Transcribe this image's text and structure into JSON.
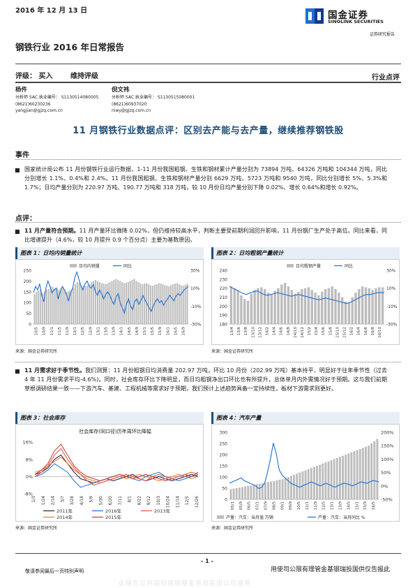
{
  "header": {
    "date": "2016 年 12 月 13 日",
    "report_title": "钢铁行业 2016 年日常报告",
    "logo_cn": "国金证券",
    "logo_en": "SINOLINK SECURITIES",
    "logo_sub": "证券研究报告"
  },
  "rating": {
    "label": "评级：  买入",
    "action": "维持评级",
    "category": "行业点评"
  },
  "analysts": [
    {
      "name": "杨件",
      "cert": "分析师 SAC 执业编号： S1130514080005",
      "phone": "(8621)60230236",
      "email": "yangjian@gjzq.com.cn"
    },
    {
      "name": "倪文祎",
      "cert": "分析师 SAC 执业编号： S1130515080001",
      "phone": "(8621)60937020",
      "email": "niwy@gjzq.com.cn"
    }
  ],
  "headline": "11 月钢铁行业数据点评：区别去产能与去产量，继续推荐钢铁股",
  "sections": {
    "event_title": "事件",
    "event_text": "国家统计局公布 11 月份钢铁行业运行数据，1-11 月份我国粗钢、生铁和钢材累计产量分别为 73894 万吨、64326 万吨和 104344 万吨，同比分别增长 1.1%、0.4%和 2.4%。11 月份我国粗钢、生铁和钢材产量分别 6629 万吨、5723 万吨和 9540 万吨，同比分别增长 5%、5.3%和 1.7%；日均产量分别为 220.97 万吨、190.77 万吨和 318 万吨，较 10 月份日均产量分别下降 0.02%、增长 0.64%和增长 0.92%。",
    "comment_title": "点评：",
    "p1_lead": "11 月产量符合预期。",
    "p1_text": "11 月产量环比微降 0.02%，但仍维持较高水平，判断主要受前期利润回升影响，11 月份钢厂生产处于高位。同比来看，同比增速提升（4.6%，较 10 月提升 0.9 个百分点）主要为基数原因。",
    "p2_lead": "11 月需求好于季节性。",
    "p2_text": "我们测算：11 月份粗钢日均消费量 202.97 万吨，环比 10 月份（202.99 万吨）基本持平，明显好于往年季节性（过去 4 年 11 月份需求平均-4.6%)。同时，社会库存环比下降明显，而日均粗钢净出口环比也有所提升，总体单月内外需情况好于预期。这与我们前期草根调研结果一致——下游汽车、基建、工程机械等需求好于预期，我们预计上述趋势具备一定持续性，板材下游需求则更好。"
  },
  "figures": {
    "fig1_title": "图表 1：日均内销量统计",
    "fig2_title": "图表 2：日均粗钢产量统计",
    "fig3_title": "图表 3：社会库存",
    "fig4_title": "图表 4：汽车产量",
    "source": "来源：国金证券研究所"
  },
  "footer": {
    "page": "- 1 -",
    "disclaimer": "敬请参阅最后一页特别声明",
    "right_text": "用使司公限有理管金基银瑞投国供仅告报此",
    "faint_text": "此报告仅供国投瑞银基金管理有限公司使用"
  },
  "chart_data": [
    {
      "type": "bar",
      "title": "图表 1：日均内销量统计",
      "series": [
        {
          "name": "日均内销量",
          "axis": "left",
          "type": "bar"
        },
        {
          "name": "同比",
          "axis": "right",
          "type": "line"
        }
      ],
      "x_tick_labels": [
        "10/5",
        "10/9",
        "11/1",
        "11/5",
        "11/9",
        "12/1",
        "12/5",
        "12/9",
        "13/1",
        "13/5",
        "13/9",
        "14/1",
        "14/5",
        "14/9",
        "15/1",
        "15/5",
        "15/9",
        "16/1",
        "16/5",
        "16/9"
      ],
      "y_left": {
        "ticks": [
          0,
          50,
          100,
          150,
          200,
          250
        ],
        "ylim": [
          0,
          250
        ]
      },
      "y_right": {
        "ticks": [
          "-30%",
          "-10%",
          "10%",
          "30%"
        ],
        "ylim": [
          -0.3,
          0.3
        ]
      },
      "bar_values": [
        138,
        150,
        155,
        160,
        145,
        150,
        160,
        163,
        175,
        172,
        165,
        170,
        160,
        165,
        170,
        160,
        150,
        155,
        160,
        168,
        185,
        195,
        190,
        180,
        178,
        175,
        180,
        185,
        195,
        200,
        205,
        200,
        195,
        190,
        188,
        185,
        190,
        195,
        200,
        205,
        210,
        205,
        200,
        195,
        190,
        192,
        195,
        200,
        205,
        210,
        200,
        195,
        190,
        185,
        188,
        190,
        185,
        180,
        178,
        182,
        185,
        190,
        188,
        185,
        180,
        178,
        175,
        180,
        185,
        188,
        190,
        185,
        180,
        178,
        182,
        188
      ],
      "line_values": [
        0.05,
        0.12,
        0.08,
        0.15,
        0.02,
        -0.05,
        0.1,
        0.18,
        0.12,
        0.05,
        0.08,
        0.1,
        -0.02,
        0.06,
        0.12,
        0.08,
        0.03,
        -0.04,
        0.05,
        0.1,
        0.22,
        0.28,
        0.2,
        0.12,
        0.08,
        0.15,
        0.18,
        0.12,
        0.1,
        0.14,
        0.06,
        0.02,
        0.08,
        0.04,
        -0.02,
        0.03,
        0.06,
        0.02,
        -0.04,
        -0.08,
        0.0,
        0.04,
        -0.06,
        -0.12,
        -0.18,
        -0.08,
        -0.02,
        -0.1,
        -0.14,
        -0.05,
        -0.02,
        -0.08,
        -0.04,
        0.02,
        -0.03,
        -0.07,
        -0.12,
        -0.16,
        -0.1,
        -0.05,
        -0.02,
        -0.06,
        -0.04,
        -0.09,
        -0.05,
        -0.02,
        0.02,
        -0.01,
        -0.04,
        0.01,
        0.04,
        0.02,
        0.05,
        0.08,
        0.1,
        0.12
      ]
    },
    {
      "type": "bar",
      "title": "图表 2：日均粗钢产量统计",
      "series": [
        {
          "name": "日均粗钢产量",
          "axis": "left",
          "type": "bar"
        },
        {
          "name": "同比",
          "axis": "right",
          "type": "line"
        }
      ],
      "x_tick_labels": [
        "13/4",
        "13/6",
        "13/8",
        "13/10",
        "13/12",
        "14/2",
        "14/4",
        "14/6",
        "14/8",
        "14/10",
        "14/12",
        "15/2",
        "15/4",
        "15/6",
        "15/8",
        "15/10",
        "15/12",
        "16/2",
        "16/4",
        "16/6",
        "16/8",
        "16/10"
      ],
      "y_left": {
        "ticks": [
          180,
          190,
          200,
          210,
          220,
          230,
          240
        ],
        "ylim": [
          180,
          240
        ]
      },
      "y_right": {
        "ticks": [
          "-30%",
          "-10%",
          "10%",
          "30%"
        ],
        "ylim": [
          -0.3,
          0.3
        ]
      },
      "bar_values": [
        222,
        220,
        218,
        212,
        208,
        206,
        214,
        218,
        220,
        221,
        219,
        215,
        213,
        217,
        220,
        224,
        226,
        222,
        218,
        214,
        216,
        219,
        220,
        221,
        218,
        215,
        212,
        216,
        219,
        220,
        222,
        219,
        215,
        210,
        205,
        204,
        210,
        215,
        219,
        222,
        221,
        220,
        218,
        220,
        221,
        221
      ],
      "line_values": [
        0.12,
        0.1,
        0.08,
        0.06,
        0.04,
        0.03,
        0.05,
        0.06,
        0.07,
        0.05,
        0.03,
        0.02,
        0.03,
        0.04,
        0.05,
        0.04,
        0.03,
        0.02,
        0.01,
        0.02,
        0.03,
        0.02,
        0.01,
        0.0,
        -0.01,
        -0.02,
        -0.03,
        -0.02,
        -0.01,
        -0.02,
        -0.03,
        -0.04,
        -0.05,
        -0.06,
        -0.07,
        -0.06,
        -0.04,
        -0.02,
        0.0,
        0.02,
        0.03,
        0.03,
        0.04,
        0.05,
        0.05,
        0.05
      ]
    },
    {
      "type": "line",
      "title": "社会库存(同口径)历年周环比降幅",
      "x_tick_labels": [
        "1/3",
        "1/24",
        "2/14",
        "3/7",
        "3/28",
        "4/18",
        "5/9",
        "5/30",
        "6/20",
        "7/11",
        "8/1",
        "8/22",
        "9/12",
        "10/3",
        "10/24",
        "11/14",
        "12/5",
        "12/26"
      ],
      "y": {
        "ticks": [
          "-8%",
          "0%",
          "8%",
          "16%"
        ],
        "ylim": [
          -0.08,
          0.18
        ]
      },
      "series": [
        {
          "name": "2011年",
          "color": "#1a1a4e",
          "values": [
            0.01,
            0.02,
            0.04,
            0.08,
            0.1,
            0.06,
            0.02,
            -0.01,
            -0.02,
            -0.03,
            -0.02,
            -0.01,
            -0.02,
            -0.01,
            0.0,
            0.01,
            -0.01,
            -0.02,
            -0.01,
            0.0,
            -0.01,
            -0.02,
            -0.01,
            0.0,
            0.01,
            0.0
          ]
        },
        {
          "name": "2014年",
          "color": "#e67e22",
          "values": [
            0.02,
            0.03,
            0.05,
            0.07,
            0.09,
            0.06,
            0.03,
            0.01,
            -0.01,
            -0.02,
            -0.03,
            -0.02,
            -0.01,
            0.0,
            -0.01,
            0.0,
            0.01,
            0.0,
            -0.01,
            -0.02,
            -0.01,
            0.0,
            0.01,
            0.0,
            -0.01,
            0.0
          ]
        },
        {
          "name": "2016年",
          "color": "#1f6fd1",
          "values": [
            0.0,
            0.01,
            0.03,
            0.06,
            0.04,
            0.02,
            -0.02,
            -0.05,
            -0.04,
            -0.03,
            -0.02,
            -0.01,
            0.0,
            0.01,
            0.0,
            -0.01,
            -0.02,
            0.0,
            0.01,
            0.02,
            0.0,
            -0.01,
            -0.02,
            -0.01,
            0.0,
            0.01
          ]
        },
        {
          "name": "2015年",
          "color": "#c0392b",
          "values": [
            0.01,
            0.03,
            0.06,
            0.12,
            0.15,
            0.1,
            0.05,
            0.02,
            0.0,
            -0.01,
            -0.02,
            -0.01,
            0.0,
            0.01,
            0.0,
            -0.01,
            0.0,
            0.01,
            0.0,
            -0.01,
            -0.02,
            -0.01,
            0.0,
            0.01,
            0.0,
            0.02
          ]
        },
        {
          "name": "2013年",
          "color": "#e74c3c",
          "values": [
            0.0,
            0.02,
            0.05,
            0.1,
            0.13,
            0.08,
            0.04,
            0.01,
            -0.02,
            -0.04,
            -0.03,
            -0.02,
            -0.01,
            0.0,
            0.01,
            0.0,
            -0.01,
            -0.02,
            0.0,
            0.01,
            0.0,
            -0.01,
            0.0,
            0.01,
            0.02,
            0.01
          ]
        }
      ]
    },
    {
      "type": "bar",
      "title": "图表 4：汽车产量",
      "series": [
        {
          "name": "产量：汽车：当月值 万辆",
          "axis": "left",
          "type": "bar"
        },
        {
          "name": "产量：汽车：当月同比 %",
          "axis": "right",
          "type": "line"
        }
      ],
      "x_tick_labels": [
        "05/1",
        "05/9",
        "06/5",
        "07/1",
        "07/9",
        "08/5",
        "09/1",
        "09/9",
        "10/5",
        "11/1",
        "11/9",
        "12/5",
        "13/1",
        "13/9",
        "14/5",
        "15/1",
        "15/9",
        "16/5"
      ],
      "y_left": {
        "ticks": [
          0,
          50,
          100,
          150,
          200,
          250,
          300
        ],
        "ylim": [
          0,
          300
        ]
      },
      "y_right": {
        "ticks": [
          "-50%",
          "0%",
          "50%",
          "100%",
          "150%",
          "200%"
        ],
        "ylim": [
          -0.5,
          2.0
        ]
      },
      "bar_values": [
        45,
        48,
        50,
        52,
        55,
        58,
        60,
        62,
        65,
        68,
        70,
        72,
        75,
        78,
        80,
        82,
        85,
        88,
        90,
        95,
        100,
        105,
        110,
        115,
        120,
        125,
        130,
        135,
        140,
        145,
        150,
        155,
        160,
        165,
        170,
        175,
        180,
        185,
        190,
        195,
        200,
        205,
        210,
        215,
        220,
        225,
        230,
        235,
        240,
        250,
        260,
        270
      ],
      "line_values": [
        0.1,
        0.15,
        0.2,
        0.25,
        0.3,
        0.2,
        0.15,
        0.1,
        0.05,
        0.0,
        -0.1,
        -0.05,
        0.1,
        0.5,
        1.0,
        1.6,
        1.2,
        0.6,
        0.4,
        0.3,
        0.2,
        0.1,
        0.05,
        0.0,
        -0.05,
        0.0,
        0.05,
        0.1,
        0.15,
        0.1,
        0.05,
        0.0,
        0.05,
        0.1,
        0.05,
        0.0,
        -0.05,
        0.0,
        0.05,
        0.1,
        0.08,
        0.05,
        0.0,
        0.05,
        0.1,
        0.15,
        0.12,
        0.1,
        0.15,
        0.2,
        0.18,
        0.15
      ]
    }
  ]
}
